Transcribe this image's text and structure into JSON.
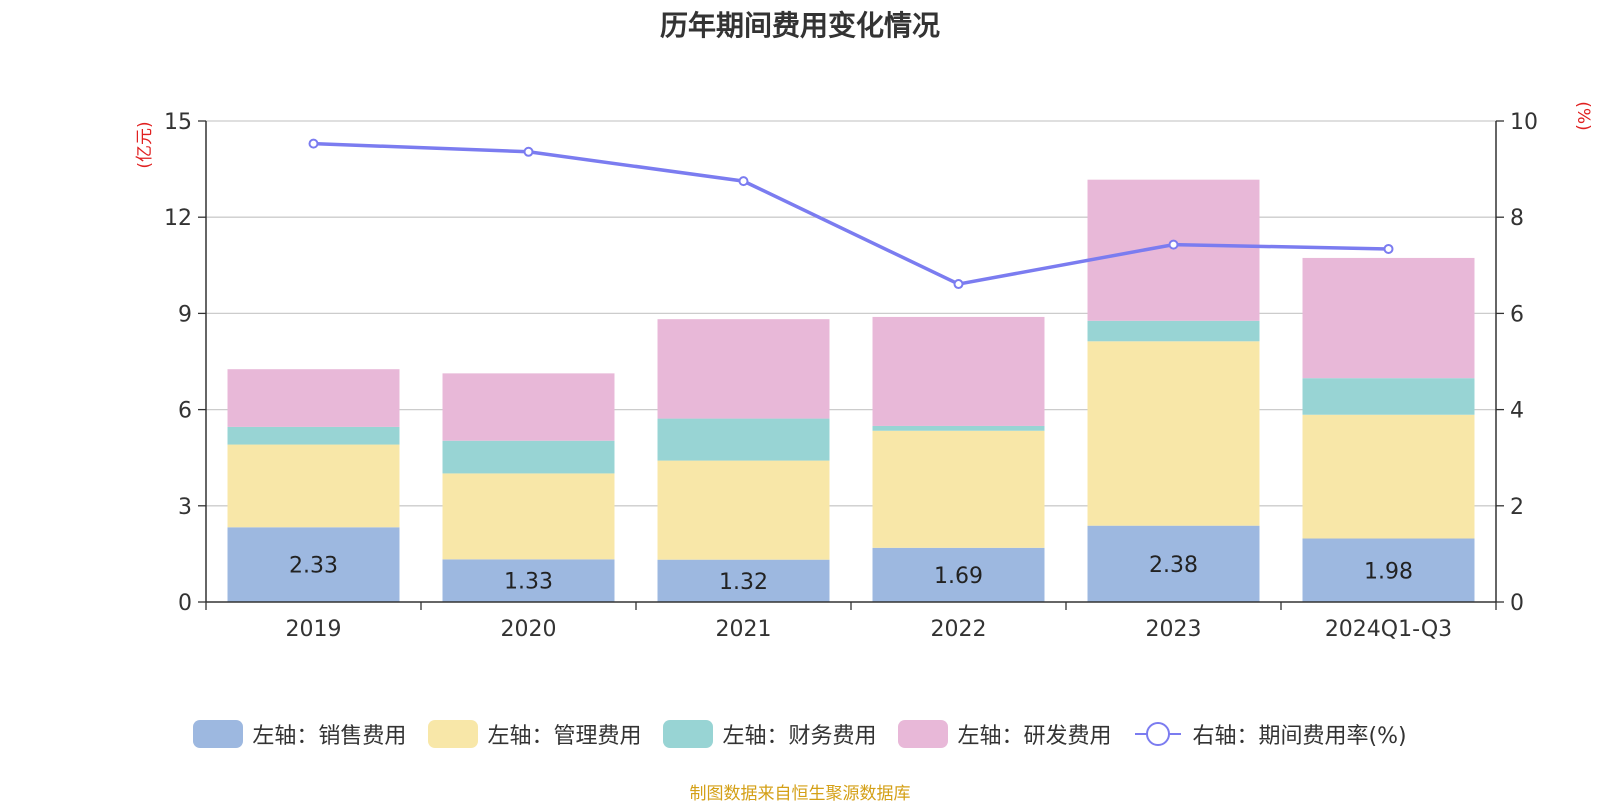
{
  "chart_data": {
    "type": "bar",
    "title": "历年期间费用变化情况",
    "categories": [
      "2019",
      "2020",
      "2021",
      "2022",
      "2023",
      "2024Q1-Q3"
    ],
    "stacked": true,
    "left_axis": {
      "unit": "(亿元)",
      "min": 0,
      "max": 15,
      "ticks": [
        0,
        3,
        6,
        9,
        12,
        15
      ]
    },
    "right_axis": {
      "unit": "(%)",
      "min": 0,
      "max": 10,
      "ticks": [
        0,
        2,
        4,
        6,
        8,
        10
      ]
    },
    "series": [
      {
        "name": "左轴：销售费用",
        "type": "bar",
        "axis": "left",
        "color": "#9db8e0",
        "values": [
          2.33,
          1.33,
          1.32,
          1.69,
          2.38,
          1.98
        ],
        "show_labels": true
      },
      {
        "name": "左轴：管理费用",
        "type": "bar",
        "axis": "left",
        "color": "#f8e7a8",
        "values": [
          2.58,
          2.68,
          3.09,
          3.65,
          5.75,
          3.86
        ]
      },
      {
        "name": "左轴：财务费用",
        "type": "bar",
        "axis": "left",
        "color": "#98d4d4",
        "values": [
          0.55,
          1.02,
          1.31,
          0.15,
          0.64,
          1.14
        ]
      },
      {
        "name": "左轴：研发费用",
        "type": "bar",
        "axis": "left",
        "color": "#e8b8d8",
        "values": [
          1.8,
          2.1,
          3.1,
          3.4,
          4.4,
          3.75
        ]
      },
      {
        "name": "右轴：期间费用率(%)",
        "type": "line",
        "axis": "right",
        "color": "#7b7cf0",
        "values": [
          9.53,
          9.36,
          8.75,
          6.61,
          7.43,
          7.34
        ]
      }
    ],
    "grid": true,
    "legend_position": "bottom"
  },
  "source_note": "制图数据来自恒生聚源数据库",
  "colors": {
    "title": "#333333",
    "axis_unit": "#e02020",
    "source_note": "#d4a017",
    "grid": "#cccccc",
    "axis": "#333333"
  }
}
